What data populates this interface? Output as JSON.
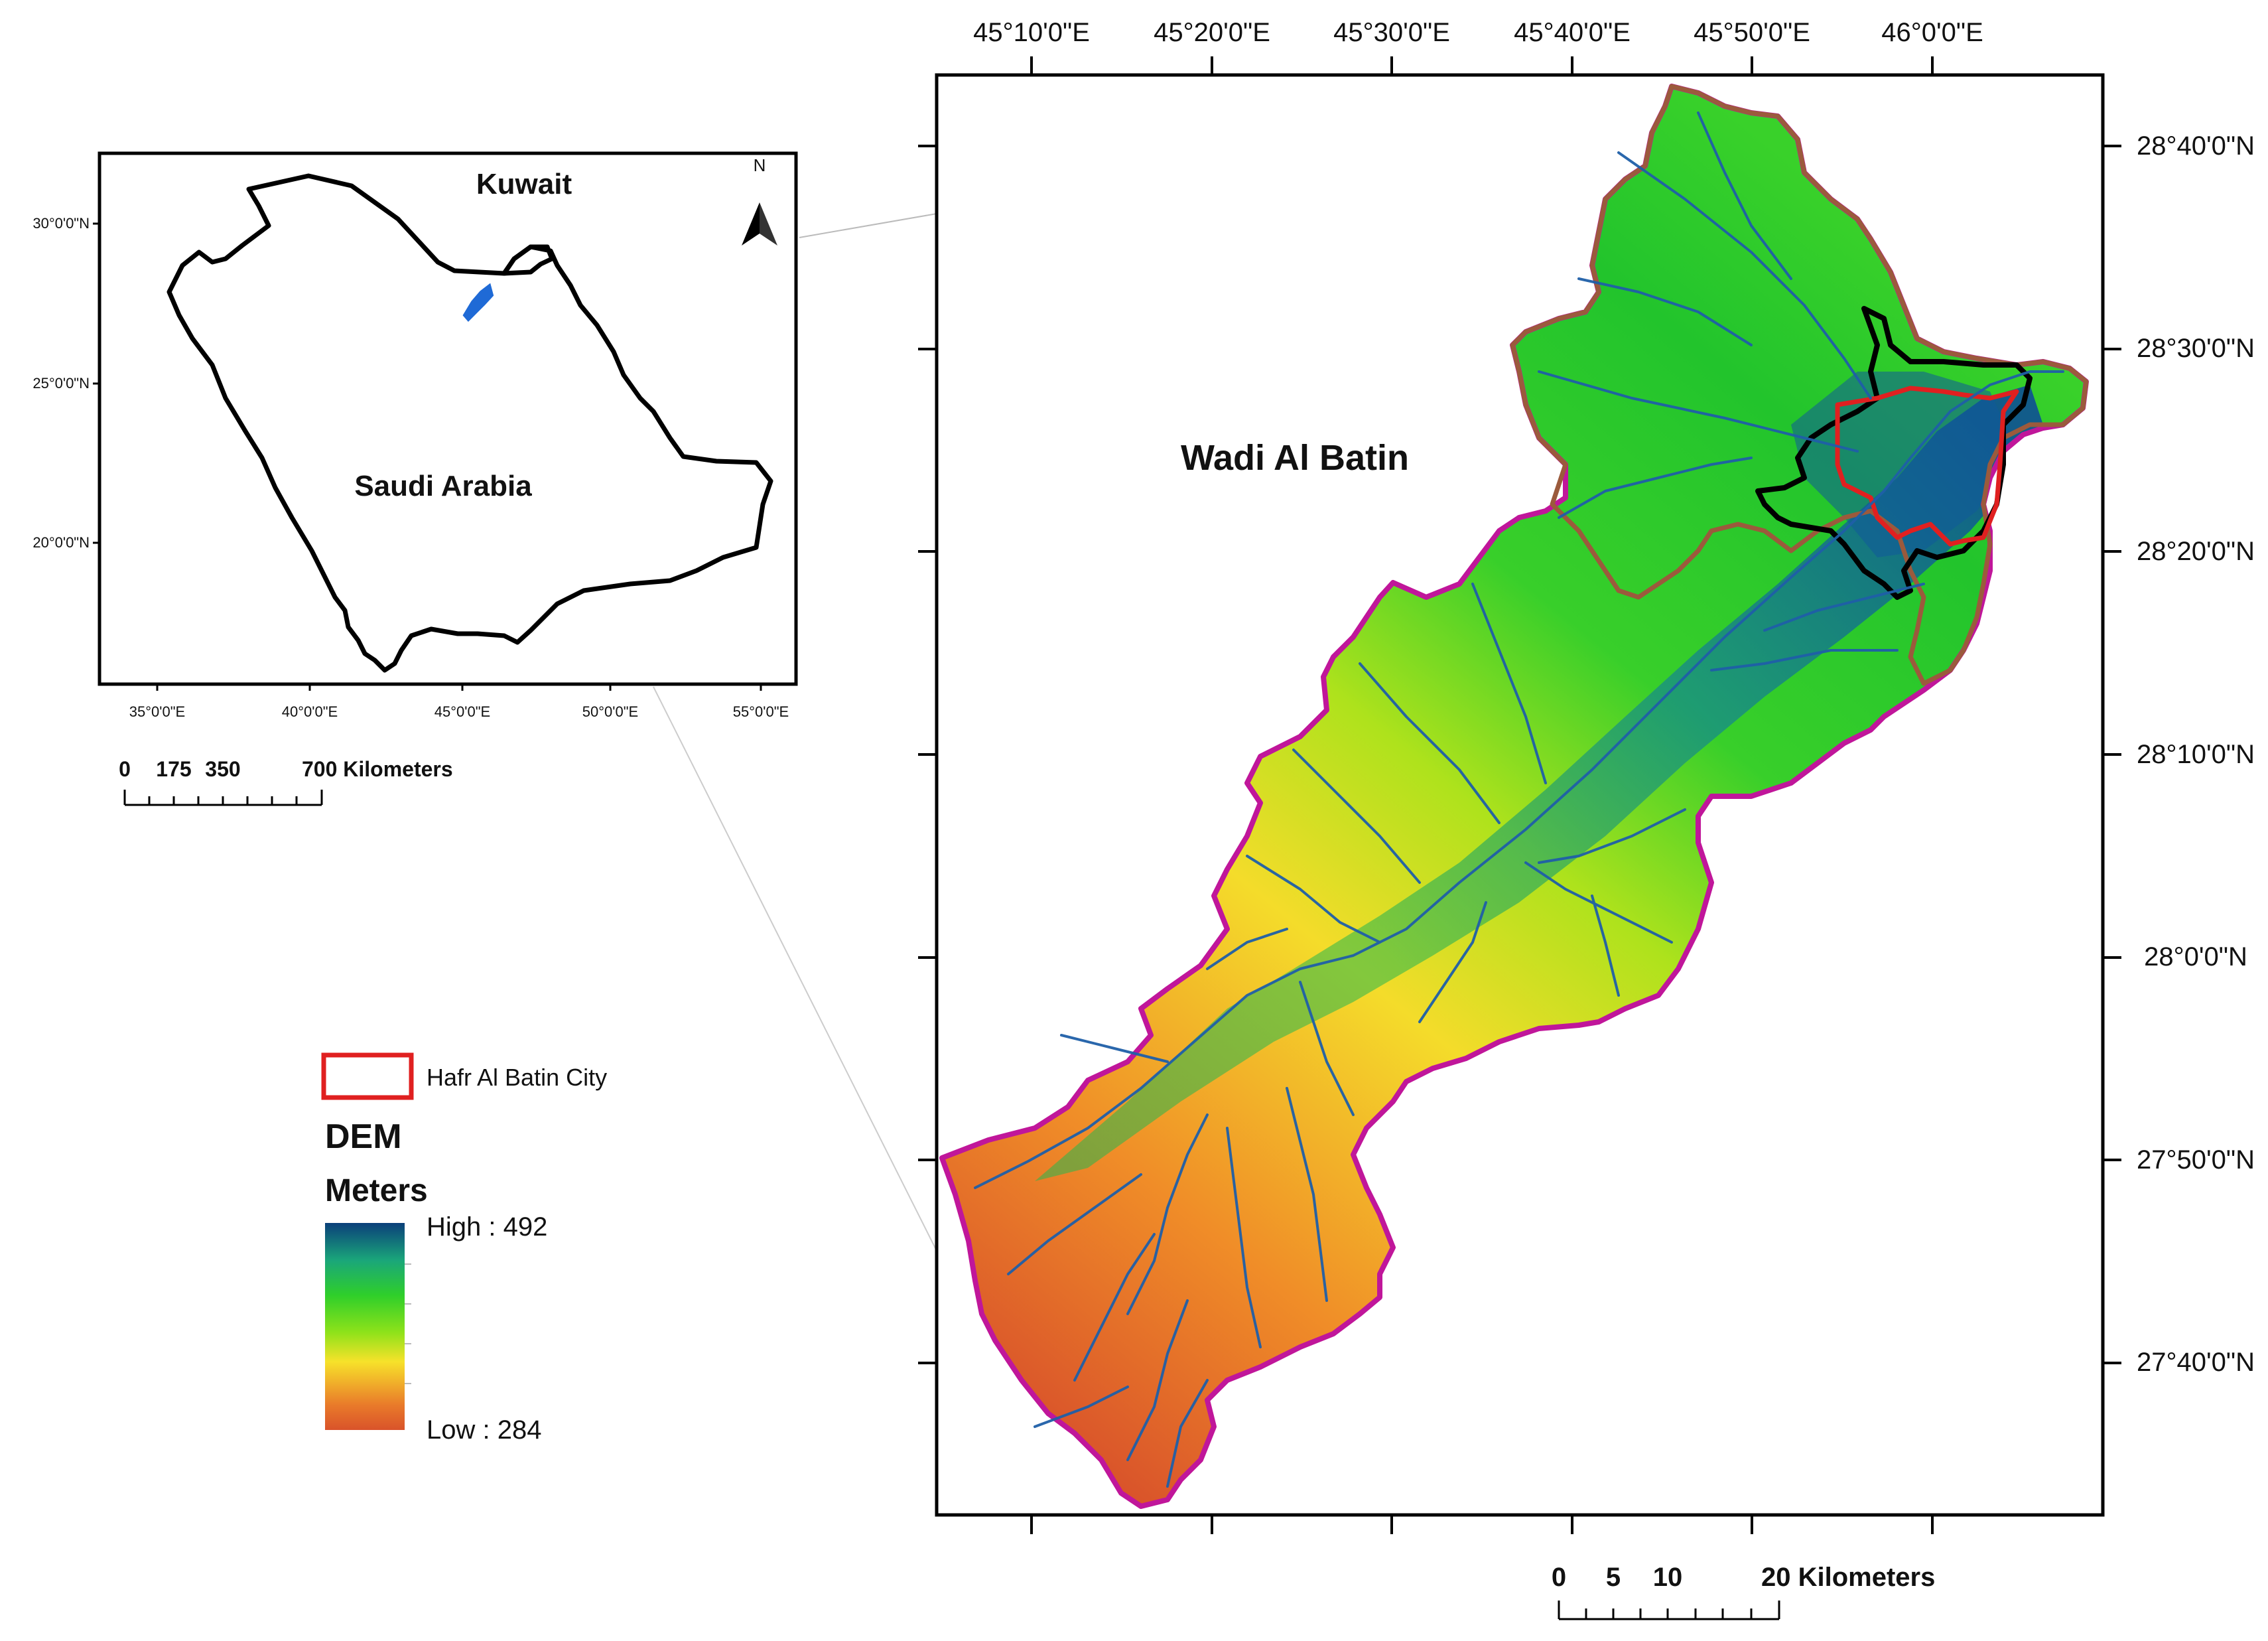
{
  "inset": {
    "kuwait_label": "Kuwait",
    "saudi_label": "Saudi Arabia",
    "north_label": "N",
    "lat_ticks": [
      "30°0'0\"N",
      "25°0'0\"N",
      "20°0'0\"N"
    ],
    "lon_ticks": [
      "35°0'0\"E",
      "40°0'0\"E",
      "45°0'0\"E",
      "50°0'0\"E",
      "55°0'0\"E"
    ],
    "scale_labels": [
      "0",
      "175",
      "350",
      "700 Kilometers"
    ]
  },
  "main": {
    "title": "Wadi Al Batin",
    "lon_ticks": [
      "45°10'0\"E",
      "45°20'0\"E",
      "45°30'0\"E",
      "45°40'0\"E",
      "45°50'0\"E",
      "46°0'0\"E"
    ],
    "lat_ticks": [
      "28°40'0\"N",
      "28°30'0\"N",
      "28°20'0\"N",
      "28°10'0\"N",
      "28°0'0\"N",
      "27°50'0\"N",
      "27°40'0\"N"
    ],
    "scale_labels": [
      "0",
      "5",
      "10",
      "20 Kilometers"
    ]
  },
  "legend": {
    "city_label": "Hafr Al Batin City",
    "dem_title": "DEM",
    "units": "Meters",
    "high_label": "High : 492",
    "low_label": "Low : 284"
  },
  "colors": {
    "city_outline": "#e02020",
    "basin_outline": "#c0169a",
    "subbasin_outline": "#9b5a3c",
    "streams": "#1f5fa8",
    "ramp": [
      "#d9532a",
      "#f29a1e",
      "#f7f21a",
      "#3fd11c",
      "#1f9f6a",
      "#0b3f7a"
    ]
  }
}
